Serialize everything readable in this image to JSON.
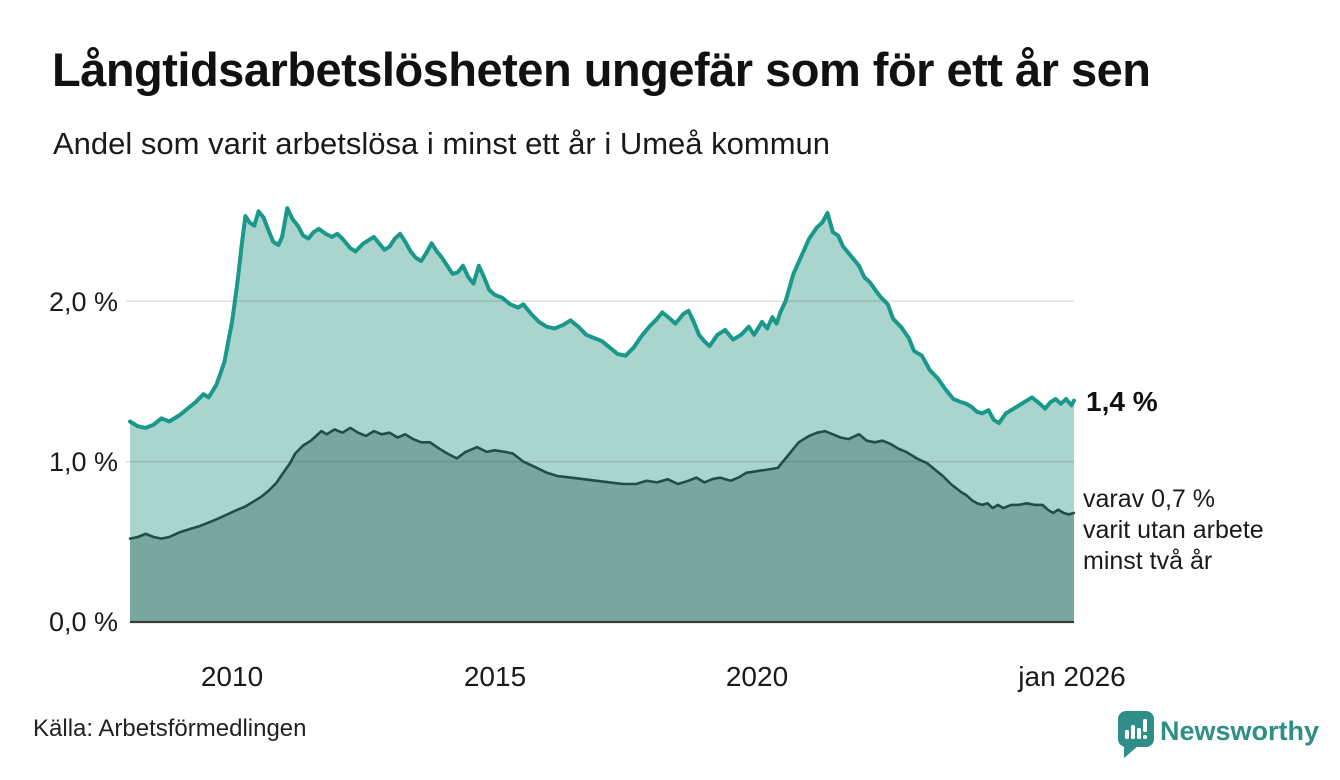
{
  "header": {
    "title": "Långtidsarbetslösheten ungefär som för ett år sen",
    "subtitle": "Andel som varit arbetslösa i minst ett år i Umeå kommun"
  },
  "annotations": {
    "latest_value": "1,4 %",
    "secondary_line1": "varav 0,7 %",
    "secondary_line2": "varit utan arbete",
    "secondary_line3": "minst två år"
  },
  "footer": {
    "source": "Källa: Arbetsförmedlingen",
    "brand": "Newsworthy"
  },
  "colors": {
    "series1_stroke": "#1a9889",
    "series1_fill": "#a9d5ce",
    "series2_stroke": "#1f4f4b",
    "series2_fill": "#7aa6a0",
    "grid": "rgba(40,40,40,0.15)",
    "axis": "#3b3b3b",
    "text": "#1a1a1a",
    "brand": "#2f8e87",
    "logo_bars": "#ffffff"
  },
  "chart_data": {
    "type": "area",
    "title": "Långtidsarbetslösheten ungefär som för ett år sen",
    "subtitle": "Andel som varit arbetslösa i minst ett år i Umeå kommun",
    "unit": "%",
    "grid": "horizontal",
    "legend_position": "annotations-right",
    "x_domain": [
      2008.05,
      2026.05
    ],
    "y_domain": [
      0,
      2.78
    ],
    "y_ticks": [
      {
        "v": 0,
        "label": "0,0 %"
      },
      {
        "v": 1,
        "label": "1,0 %"
      },
      {
        "v": 2,
        "label": "2,0 %"
      }
    ],
    "x_ticks": [
      {
        "v": 2010,
        "label": "2010"
      },
      {
        "v": 2015,
        "label": "2015"
      },
      {
        "v": 2020,
        "label": "2020"
      },
      {
        "v": 2026.04,
        "label": "jan 2026"
      }
    ],
    "series": [
      {
        "name": "Andel arbetslösa minst ett år",
        "latest_label": "1,4 %",
        "points": [
          [
            2008.05,
            1.25
          ],
          [
            2008.2,
            1.22
          ],
          [
            2008.35,
            1.21
          ],
          [
            2008.5,
            1.23
          ],
          [
            2008.65,
            1.27
          ],
          [
            2008.8,
            1.25
          ],
          [
            2009.0,
            1.29
          ],
          [
            2009.15,
            1.33
          ],
          [
            2009.3,
            1.37
          ],
          [
            2009.45,
            1.42
          ],
          [
            2009.55,
            1.4
          ],
          [
            2009.7,
            1.48
          ],
          [
            2009.85,
            1.62
          ],
          [
            2010.0,
            1.88
          ],
          [
            2010.1,
            2.12
          ],
          [
            2010.18,
            2.35
          ],
          [
            2010.25,
            2.53
          ],
          [
            2010.33,
            2.49
          ],
          [
            2010.42,
            2.47
          ],
          [
            2010.5,
            2.56
          ],
          [
            2010.6,
            2.52
          ],
          [
            2010.68,
            2.45
          ],
          [
            2010.78,
            2.37
          ],
          [
            2010.88,
            2.35
          ],
          [
            2010.95,
            2.4
          ],
          [
            2011.05,
            2.58
          ],
          [
            2011.15,
            2.51
          ],
          [
            2011.25,
            2.47
          ],
          [
            2011.35,
            2.41
          ],
          [
            2011.45,
            2.39
          ],
          [
            2011.55,
            2.43
          ],
          [
            2011.65,
            2.45
          ],
          [
            2011.78,
            2.42
          ],
          [
            2011.9,
            2.4
          ],
          [
            2012.0,
            2.42
          ],
          [
            2012.1,
            2.39
          ],
          [
            2012.25,
            2.33
          ],
          [
            2012.35,
            2.31
          ],
          [
            2012.5,
            2.36
          ],
          [
            2012.6,
            2.38
          ],
          [
            2012.7,
            2.4
          ],
          [
            2012.8,
            2.36
          ],
          [
            2012.9,
            2.32
          ],
          [
            2013.0,
            2.34
          ],
          [
            2013.1,
            2.39
          ],
          [
            2013.2,
            2.42
          ],
          [
            2013.3,
            2.37
          ],
          [
            2013.4,
            2.31
          ],
          [
            2013.5,
            2.27
          ],
          [
            2013.6,
            2.25
          ],
          [
            2013.7,
            2.3
          ],
          [
            2013.8,
            2.36
          ],
          [
            2013.9,
            2.31
          ],
          [
            2014.0,
            2.27
          ],
          [
            2014.1,
            2.22
          ],
          [
            2014.2,
            2.17
          ],
          [
            2014.3,
            2.18
          ],
          [
            2014.4,
            2.22
          ],
          [
            2014.5,
            2.15
          ],
          [
            2014.6,
            2.11
          ],
          [
            2014.7,
            2.22
          ],
          [
            2014.8,
            2.15
          ],
          [
            2014.9,
            2.07
          ],
          [
            2015.0,
            2.04
          ],
          [
            2015.15,
            2.02
          ],
          [
            2015.3,
            1.98
          ],
          [
            2015.45,
            1.96
          ],
          [
            2015.55,
            1.98
          ],
          [
            2015.7,
            1.92
          ],
          [
            2015.85,
            1.87
          ],
          [
            2016.0,
            1.84
          ],
          [
            2016.15,
            1.83
          ],
          [
            2016.3,
            1.85
          ],
          [
            2016.45,
            1.88
          ],
          [
            2016.6,
            1.84
          ],
          [
            2016.75,
            1.79
          ],
          [
            2016.9,
            1.77
          ],
          [
            2017.05,
            1.75
          ],
          [
            2017.2,
            1.71
          ],
          [
            2017.35,
            1.67
          ],
          [
            2017.5,
            1.66
          ],
          [
            2017.65,
            1.71
          ],
          [
            2017.8,
            1.78
          ],
          [
            2017.95,
            1.84
          ],
          [
            2018.1,
            1.89
          ],
          [
            2018.2,
            1.93
          ],
          [
            2018.35,
            1.89
          ],
          [
            2018.45,
            1.86
          ],
          [
            2018.6,
            1.92
          ],
          [
            2018.7,
            1.94
          ],
          [
            2018.8,
            1.87
          ],
          [
            2018.9,
            1.79
          ],
          [
            2019.0,
            1.75
          ],
          [
            2019.1,
            1.72
          ],
          [
            2019.25,
            1.79
          ],
          [
            2019.4,
            1.82
          ],
          [
            2019.55,
            1.76
          ],
          [
            2019.7,
            1.79
          ],
          [
            2019.85,
            1.84
          ],
          [
            2019.95,
            1.79
          ],
          [
            2020.1,
            1.87
          ],
          [
            2020.2,
            1.83
          ],
          [
            2020.3,
            1.9
          ],
          [
            2020.38,
            1.86
          ],
          [
            2020.45,
            1.93
          ],
          [
            2020.55,
            2.0
          ],
          [
            2020.7,
            2.17
          ],
          [
            2020.85,
            2.28
          ],
          [
            2021.0,
            2.39
          ],
          [
            2021.15,
            2.46
          ],
          [
            2021.25,
            2.49
          ],
          [
            2021.35,
            2.55
          ],
          [
            2021.45,
            2.43
          ],
          [
            2021.55,
            2.41
          ],
          [
            2021.65,
            2.34
          ],
          [
            2021.8,
            2.28
          ],
          [
            2021.95,
            2.22
          ],
          [
            2022.05,
            2.15
          ],
          [
            2022.15,
            2.12
          ],
          [
            2022.35,
            2.03
          ],
          [
            2022.5,
            1.98
          ],
          [
            2022.6,
            1.89
          ],
          [
            2022.75,
            1.84
          ],
          [
            2022.9,
            1.77
          ],
          [
            2023.0,
            1.69
          ],
          [
            2023.15,
            1.66
          ],
          [
            2023.3,
            1.57
          ],
          [
            2023.45,
            1.52
          ],
          [
            2023.6,
            1.45
          ],
          [
            2023.75,
            1.39
          ],
          [
            2023.9,
            1.37
          ],
          [
            2024.0,
            1.36
          ],
          [
            2024.1,
            1.34
          ],
          [
            2024.2,
            1.31
          ],
          [
            2024.3,
            1.3
          ],
          [
            2024.42,
            1.32
          ],
          [
            2024.52,
            1.26
          ],
          [
            2024.62,
            1.24
          ],
          [
            2024.75,
            1.3
          ],
          [
            2024.85,
            1.32
          ],
          [
            2025.0,
            1.35
          ],
          [
            2025.15,
            1.38
          ],
          [
            2025.25,
            1.4
          ],
          [
            2025.4,
            1.36
          ],
          [
            2025.5,
            1.33
          ],
          [
            2025.6,
            1.37
          ],
          [
            2025.7,
            1.39
          ],
          [
            2025.8,
            1.36
          ],
          [
            2025.9,
            1.39
          ],
          [
            2026.0,
            1.35
          ],
          [
            2026.05,
            1.38
          ]
        ]
      },
      {
        "name": "Andel arbetslösa minst två år",
        "latest_label": "0,7 %",
        "points": [
          [
            2008.05,
            0.52
          ],
          [
            2008.2,
            0.53
          ],
          [
            2008.35,
            0.55
          ],
          [
            2008.5,
            0.53
          ],
          [
            2008.65,
            0.52
          ],
          [
            2008.8,
            0.53
          ],
          [
            2009.0,
            0.56
          ],
          [
            2009.2,
            0.58
          ],
          [
            2009.4,
            0.6
          ],
          [
            2009.55,
            0.62
          ],
          [
            2009.7,
            0.64
          ],
          [
            2009.9,
            0.67
          ],
          [
            2010.1,
            0.7
          ],
          [
            2010.25,
            0.72
          ],
          [
            2010.4,
            0.75
          ],
          [
            2010.55,
            0.78
          ],
          [
            2010.7,
            0.82
          ],
          [
            2010.85,
            0.87
          ],
          [
            2010.95,
            0.92
          ],
          [
            2011.1,
            0.99
          ],
          [
            2011.2,
            1.05
          ],
          [
            2011.35,
            1.1
          ],
          [
            2011.5,
            1.13
          ],
          [
            2011.6,
            1.16
          ],
          [
            2011.7,
            1.19
          ],
          [
            2011.8,
            1.17
          ],
          [
            2011.95,
            1.2
          ],
          [
            2012.1,
            1.18
          ],
          [
            2012.25,
            1.21
          ],
          [
            2012.4,
            1.18
          ],
          [
            2012.55,
            1.16
          ],
          [
            2012.7,
            1.19
          ],
          [
            2012.85,
            1.17
          ],
          [
            2013.0,
            1.18
          ],
          [
            2013.15,
            1.15
          ],
          [
            2013.3,
            1.17
          ],
          [
            2013.45,
            1.14
          ],
          [
            2013.6,
            1.12
          ],
          [
            2013.77,
            1.12
          ],
          [
            2013.95,
            1.08
          ],
          [
            2014.1,
            1.05
          ],
          [
            2014.28,
            1.02
          ],
          [
            2014.45,
            1.06
          ],
          [
            2014.67,
            1.09
          ],
          [
            2014.85,
            1.06
          ],
          [
            2015.0,
            1.07
          ],
          [
            2015.2,
            1.06
          ],
          [
            2015.35,
            1.05
          ],
          [
            2015.55,
            1.0
          ],
          [
            2015.75,
            0.97
          ],
          [
            2016.0,
            0.93
          ],
          [
            2016.2,
            0.91
          ],
          [
            2016.45,
            0.9
          ],
          [
            2016.7,
            0.89
          ],
          [
            2016.95,
            0.88
          ],
          [
            2017.2,
            0.87
          ],
          [
            2017.45,
            0.86
          ],
          [
            2017.7,
            0.86
          ],
          [
            2017.9,
            0.88
          ],
          [
            2018.1,
            0.87
          ],
          [
            2018.3,
            0.89
          ],
          [
            2018.5,
            0.86
          ],
          [
            2018.7,
            0.88
          ],
          [
            2018.85,
            0.9
          ],
          [
            2019.0,
            0.87
          ],
          [
            2019.15,
            0.89
          ],
          [
            2019.3,
            0.9
          ],
          [
            2019.5,
            0.88
          ],
          [
            2019.65,
            0.9
          ],
          [
            2019.8,
            0.93
          ],
          [
            2020.0,
            0.94
          ],
          [
            2020.2,
            0.95
          ],
          [
            2020.4,
            0.96
          ],
          [
            2020.6,
            1.04
          ],
          [
            2020.8,
            1.12
          ],
          [
            2021.0,
            1.16
          ],
          [
            2021.15,
            1.18
          ],
          [
            2021.3,
            1.19
          ],
          [
            2021.45,
            1.17
          ],
          [
            2021.6,
            1.15
          ],
          [
            2021.75,
            1.14
          ],
          [
            2021.95,
            1.17
          ],
          [
            2022.1,
            1.13
          ],
          [
            2022.25,
            1.12
          ],
          [
            2022.4,
            1.13
          ],
          [
            2022.55,
            1.11
          ],
          [
            2022.7,
            1.08
          ],
          [
            2022.85,
            1.06
          ],
          [
            2023.05,
            1.02
          ],
          [
            2023.25,
            0.99
          ],
          [
            2023.4,
            0.95
          ],
          [
            2023.55,
            0.91
          ],
          [
            2023.7,
            0.86
          ],
          [
            2023.9,
            0.81
          ],
          [
            2024.0,
            0.79
          ],
          [
            2024.1,
            0.76
          ],
          [
            2024.2,
            0.74
          ],
          [
            2024.3,
            0.73
          ],
          [
            2024.4,
            0.74
          ],
          [
            2024.5,
            0.71
          ],
          [
            2024.6,
            0.73
          ],
          [
            2024.7,
            0.71
          ],
          [
            2024.85,
            0.73
          ],
          [
            2025.0,
            0.73
          ],
          [
            2025.15,
            0.74
          ],
          [
            2025.3,
            0.73
          ],
          [
            2025.45,
            0.73
          ],
          [
            2025.55,
            0.7
          ],
          [
            2025.65,
            0.68
          ],
          [
            2025.75,
            0.7
          ],
          [
            2025.85,
            0.68
          ],
          [
            2025.95,
            0.67
          ],
          [
            2026.05,
            0.68
          ]
        ]
      }
    ]
  }
}
